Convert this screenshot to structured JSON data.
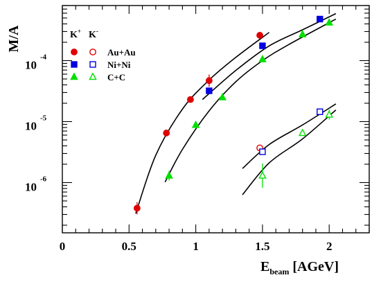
{
  "chart_data": {
    "type": "scatter",
    "yscale": "log",
    "xlim": [
      0,
      2.3
    ],
    "ylim": [
      1.5e-07,
      0.0008
    ],
    "grid": false,
    "xlabel": {
      "main": "E",
      "sub": "beam",
      "unit": "[AGeV]"
    },
    "ylabel": "M/A",
    "x_ticks": [
      {
        "value": 0,
        "label": "0"
      },
      {
        "value": 0.5,
        "label": "0.5"
      },
      {
        "value": 1,
        "label": "1"
      },
      {
        "value": 1.5,
        "label": "1.5"
      },
      {
        "value": 2,
        "label": "2"
      }
    ],
    "y_ticks": [
      {
        "value": 1e-06,
        "base": "10",
        "exp": "-6"
      },
      {
        "value": 1e-05,
        "base": "10",
        "exp": "-5"
      },
      {
        "value": 0.0001,
        "base": "10",
        "exp": "-4"
      }
    ],
    "legend": {
      "position": "top-left",
      "header": [
        {
          "base": "K",
          "sup": "+"
        },
        {
          "base": "K",
          "sup": "-"
        }
      ],
      "entries": [
        {
          "label": "Au+Au",
          "color": "#e00000",
          "marker": "circle"
        },
        {
          "label": "Ni+Ni",
          "color": "#0000e0",
          "marker": "square"
        },
        {
          "label": "C+C",
          "color": "#00e000",
          "marker": "triangle"
        }
      ]
    },
    "series": [
      {
        "system": "Au+Au",
        "kaon": "K+",
        "color": "#e00000",
        "marker": "circle",
        "filled": true,
        "points": [
          {
            "x": 0.56,
            "y": 3.8e-07,
            "err": 0.1
          },
          {
            "x": 0.78,
            "y": 6.5e-06,
            "err": 0.05
          },
          {
            "x": 0.96,
            "y": 2.3e-05,
            "err": 0.05
          },
          {
            "x": 1.1,
            "y": 4.7e-05,
            "err": 0.1
          },
          {
            "x": 1.48,
            "y": 0.00026,
            "err": 0.0
          }
        ]
      },
      {
        "system": "Ni+Ni",
        "kaon": "K+",
        "color": "#0000e0",
        "marker": "square",
        "filled": true,
        "points": [
          {
            "x": 1.1,
            "y": 3.2e-05,
            "err": 0.0
          },
          {
            "x": 1.5,
            "y": 0.000175,
            "err": 0.0
          },
          {
            "x": 1.93,
            "y": 0.00048,
            "err": 0.0
          }
        ]
      },
      {
        "system": "C+C",
        "kaon": "K+",
        "color": "#00e000",
        "marker": "triangle",
        "filled": true,
        "points": [
          {
            "x": 0.8,
            "y": 1.3e-06,
            "err": 0.08
          },
          {
            "x": 1.0,
            "y": 8.8e-06,
            "err": 0.05
          },
          {
            "x": 1.2,
            "y": 2.5e-05,
            "err": 0.0
          },
          {
            "x": 1.5,
            "y": 0.000105,
            "err": 0.04
          },
          {
            "x": 1.8,
            "y": 0.00027,
            "err": 0.0
          },
          {
            "x": 2.0,
            "y": 0.00042,
            "err": 0.0
          }
        ]
      },
      {
        "system": "Au+Au",
        "kaon": "K-",
        "color": "#e00000",
        "marker": "circle",
        "filled": false,
        "points": [
          {
            "x": 1.48,
            "y": 3.7e-06,
            "err": 0.0
          }
        ]
      },
      {
        "system": "Ni+Ni",
        "kaon": "K-",
        "color": "#0000e0",
        "marker": "square",
        "filled": false,
        "points": [
          {
            "x": 1.5,
            "y": 3.2e-06,
            "err": 0.0
          },
          {
            "x": 1.93,
            "y": 1.45e-05,
            "err": 0.0
          }
        ]
      },
      {
        "system": "C+C",
        "kaon": "K-",
        "color": "#00e000",
        "marker": "triangle",
        "filled": false,
        "points": [
          {
            "x": 1.5,
            "y": 1.3e-06,
            "err": 0.2
          },
          {
            "x": 1.8,
            "y": 6.5e-06,
            "err": 0.0
          },
          {
            "x": 2.0,
            "y": 1.3e-05,
            "err": 0.08
          }
        ]
      }
    ],
    "curves": [
      {
        "name": "fit-au-au",
        "points": [
          [
            0.55,
            3.1e-07
          ],
          [
            0.7,
            2.8e-06
          ],
          [
            0.9,
            1.6e-05
          ],
          [
            1.1,
            4.8e-05
          ],
          [
            1.3,
            0.000113
          ],
          [
            1.55,
            0.00029
          ]
        ]
      },
      {
        "name": "fit-ni-ni",
        "points": [
          [
            1.05,
            2.3e-05
          ],
          [
            1.3,
            6.9e-05
          ],
          [
            1.55,
            0.000174
          ],
          [
            1.8,
            0.00032
          ],
          [
            2.05,
            0.00059
          ]
        ]
      },
      {
        "name": "fit-c-c",
        "points": [
          [
            0.77,
            1.02e-06
          ],
          [
            0.9,
            3.5e-06
          ],
          [
            1.1,
            1.5e-05
          ],
          [
            1.3,
            4.5e-05
          ],
          [
            1.5,
            0.0001
          ],
          [
            1.7,
            0.000185
          ],
          [
            2.05,
            0.00048
          ]
        ]
      },
      {
        "name": "fit-k-minus-upper",
        "points": [
          [
            1.35,
            1.7e-06
          ],
          [
            1.55,
            4.2e-06
          ],
          [
            1.8,
            8.8e-06
          ],
          [
            2.05,
            1.95e-05
          ]
        ]
      },
      {
        "name": "fit-k-minus-lower",
        "points": [
          [
            1.35,
            6.3e-07
          ],
          [
            1.55,
            2.1e-06
          ],
          [
            1.8,
            5.2e-06
          ],
          [
            2.05,
            1.55e-05
          ]
        ]
      }
    ]
  }
}
